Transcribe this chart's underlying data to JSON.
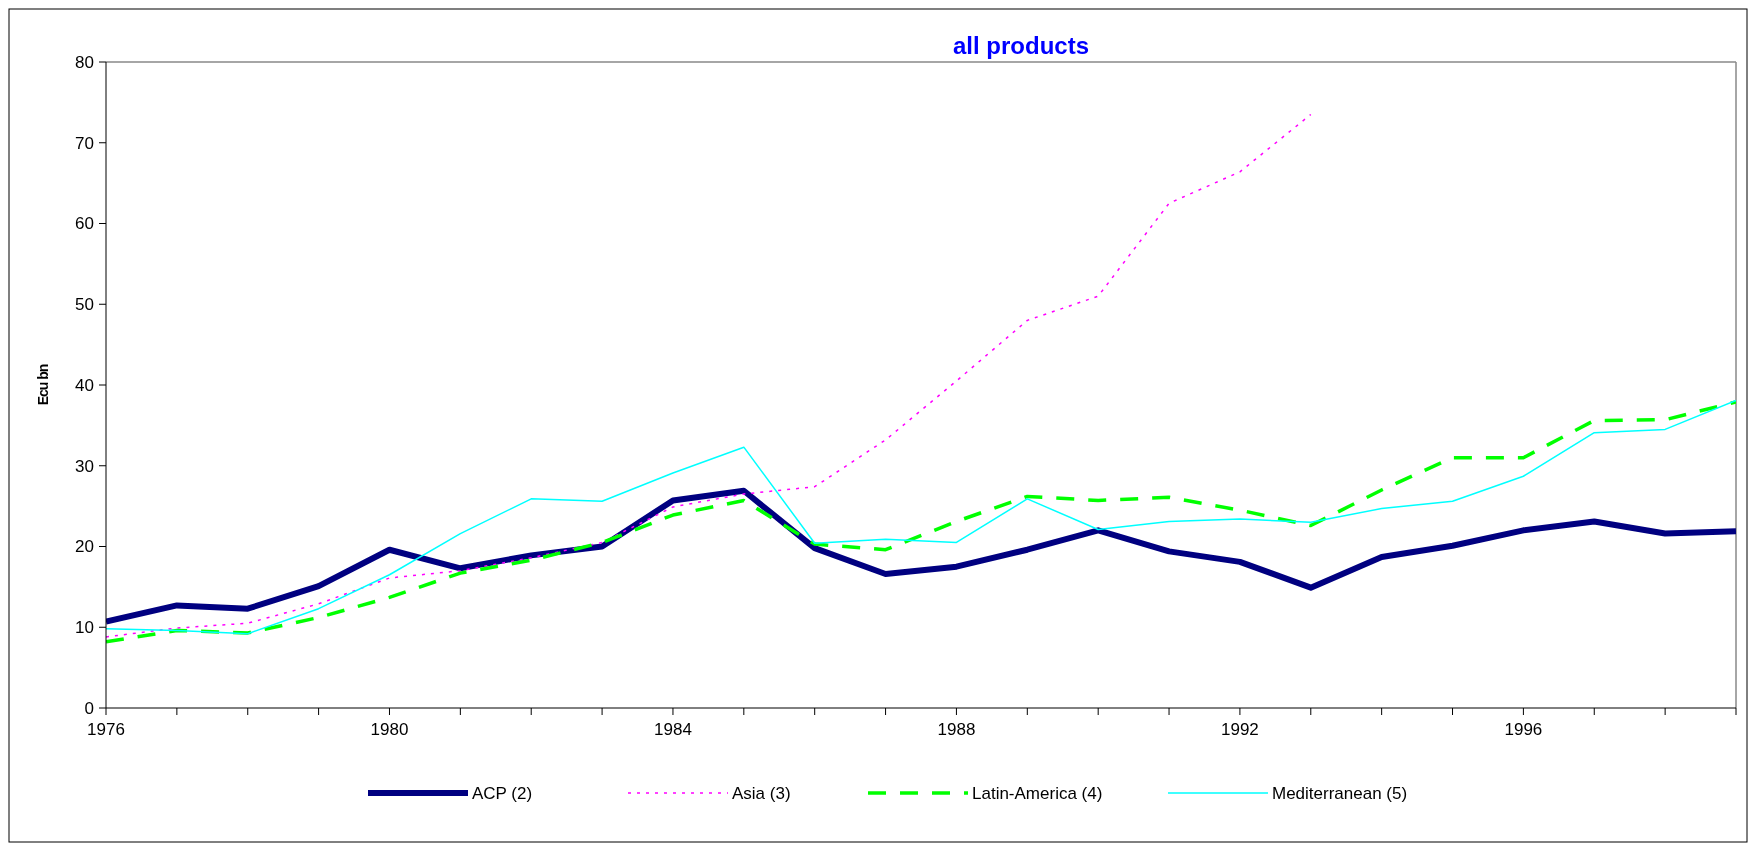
{
  "chart_data": {
    "type": "line",
    "title": "all products",
    "ylabel": "Ecu bn",
    "x": [
      1976,
      1977,
      1978,
      1979,
      1980,
      1981,
      1982,
      1983,
      1984,
      1985,
      1986,
      1987,
      1988,
      1989,
      1990,
      1991,
      1992,
      1993,
      1994,
      1995,
      1996,
      1997,
      1998,
      1999
    ],
    "xlim": [
      1976,
      1999
    ],
    "xticks": [
      1976,
      {
        "value": 1977,
        "label": null
      },
      {
        "value": 1978,
        "label": null
      },
      {
        "value": 1979,
        "label": null
      },
      1980,
      {
        "value": 1981,
        "label": null
      },
      {
        "value": 1982,
        "label": null
      },
      {
        "value": 1983,
        "label": null
      },
      1984,
      {
        "value": 1985,
        "label": null
      },
      {
        "value": 1986,
        "label": null
      },
      {
        "value": 1987,
        "label": null
      },
      1988,
      {
        "value": 1989,
        "label": null
      },
      {
        "value": 1990,
        "label": null
      },
      {
        "value": 1991,
        "label": null
      },
      1992,
      {
        "value": 1993,
        "label": null
      },
      {
        "value": 1994,
        "label": null
      },
      {
        "value": 1995,
        "label": null
      },
      1996,
      {
        "value": 1997,
        "label": null
      },
      {
        "value": 1998,
        "label": null
      },
      {
        "value": 1999,
        "label": null
      }
    ],
    "ylim": [
      0,
      80
    ],
    "yticks": [
      0,
      10,
      20,
      30,
      40,
      50,
      60,
      70,
      80
    ],
    "grid": false,
    "legend": "bottom",
    "marker": "none",
    "series": [
      {
        "name": "ACP (2)",
        "color": "#000080",
        "line_style": "solid",
        "values": [
          10.7,
          12.7,
          12.3,
          15.1,
          19.6,
          17.3,
          18.9,
          20.0,
          25.7,
          26.9,
          19.8,
          16.6,
          17.5,
          19.6,
          22.0,
          19.4,
          18.1,
          14.9,
          18.7,
          20.1,
          22.0,
          23.1,
          21.6,
          21.9
        ]
      },
      {
        "name": "Asia (3)",
        "color": "#ff00ff",
        "line_style": "dotted",
        "values": [
          8.8,
          9.9,
          10.5,
          12.9,
          16.1,
          17.0,
          18.6,
          20.5,
          24.9,
          26.5,
          27.4,
          33.2,
          40.5,
          48.0,
          51.0,
          62.5,
          66.4,
          73.5,
          null,
          null,
          null,
          null,
          null,
          null
        ]
      },
      {
        "name": "Latin-America (4)",
        "color": "#00ff00",
        "line_style": "dashed",
        "values": [
          8.2,
          9.6,
          9.3,
          11.2,
          13.7,
          16.7,
          18.3,
          20.5,
          23.9,
          25.7,
          20.3,
          19.6,
          23.1,
          26.2,
          25.7,
          26.1,
          24.5,
          22.6,
          27.0,
          31.0,
          31.0,
          35.6,
          35.7,
          37.9
        ]
      },
      {
        "name": "Mediterranean (5)",
        "color": "#00ffff",
        "line_style": "solid",
        "values": [
          9.8,
          9.6,
          9.2,
          12.3,
          16.5,
          21.6,
          25.9,
          25.6,
          29.1,
          32.3,
          20.4,
          20.9,
          20.5,
          25.9,
          22.1,
          23.1,
          23.4,
          23.0,
          24.7,
          25.6,
          28.7,
          34.1,
          34.5,
          38.1
        ]
      }
    ]
  }
}
